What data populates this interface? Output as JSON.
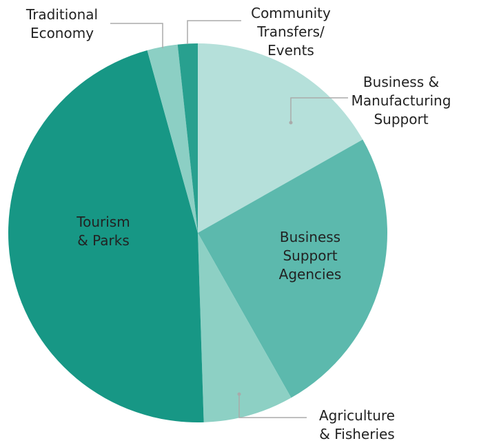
{
  "chart_data": {
    "type": "pie",
    "categories": [
      "Business &\nManufacturing\nSupport",
      "Business\nSupport\nAgencies",
      "Agriculture\n& Fisheries",
      "Tourism\n& Parks",
      "Traditional\nEconomy",
      "Community\nTransfers/\nEvents"
    ],
    "values": [
      16.8,
      25,
      7.7,
      46.2,
      2.6,
      1.7
    ],
    "colors": [
      "#b5e0da",
      "#5cb9ad",
      "#8dd0c4",
      "#179785",
      "#8ccfc4",
      "#28a08f"
    ]
  }
}
